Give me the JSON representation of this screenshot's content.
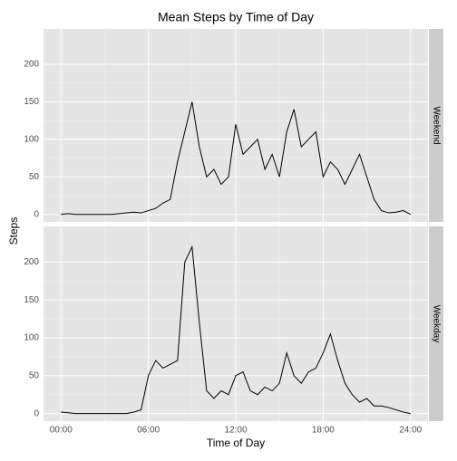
{
  "chart_data": {
    "type": "line",
    "title": "Mean Steps by Time of Day",
    "xlabel": "Time of Day",
    "ylabel": "Steps",
    "color": "#000000",
    "grid": true,
    "xlim": [
      -1.2,
      25.2
    ],
    "ylim": [
      -10,
      247
    ],
    "xticks": [
      {
        "value": 0,
        "label": "00:00"
      },
      {
        "value": 6,
        "label": "06:00"
      },
      {
        "value": 12,
        "label": "12:00"
      },
      {
        "value": 18,
        "label": "18:00"
      },
      {
        "value": 24,
        "label": "24:00"
      }
    ],
    "yticks": [
      0,
      50,
      100,
      150,
      200
    ],
    "x": [
      0,
      0.5,
      1,
      1.5,
      2,
      2.5,
      3,
      3.5,
      4,
      4.5,
      5,
      5.5,
      6,
      6.5,
      7,
      7.5,
      8,
      8.5,
      9,
      9.5,
      10,
      10.5,
      11,
      11.5,
      12,
      12.5,
      13,
      13.5,
      14,
      14.5,
      15,
      15.5,
      16,
      16.5,
      17,
      17.5,
      18,
      18.5,
      19,
      19.5,
      20,
      20.5,
      21,
      21.5,
      22,
      22.5,
      23,
      23.5,
      24
    ],
    "series": [
      {
        "name": "Weekend",
        "values": [
          0,
          1,
          0,
          0,
          0,
          0,
          0,
          0,
          1,
          2,
          3,
          2,
          5,
          8,
          15,
          20,
          70,
          110,
          150,
          90,
          50,
          60,
          40,
          50,
          120,
          80,
          90,
          100,
          60,
          80,
          50,
          110,
          140,
          90,
          100,
          110,
          50,
          70,
          60,
          40,
          60,
          80,
          50,
          20,
          5,
          2,
          3,
          5,
          0
        ]
      },
      {
        "name": "Weekday",
        "values": [
          2,
          1,
          0,
          0,
          0,
          0,
          0,
          0,
          0,
          0,
          2,
          5,
          50,
          70,
          60,
          65,
          70,
          200,
          220,
          120,
          30,
          20,
          30,
          25,
          50,
          55,
          30,
          25,
          35,
          30,
          40,
          80,
          50,
          40,
          55,
          60,
          80,
          105,
          70,
          40,
          25,
          15,
          20,
          10,
          10,
          8,
          5,
          2,
          0
        ]
      }
    ]
  }
}
